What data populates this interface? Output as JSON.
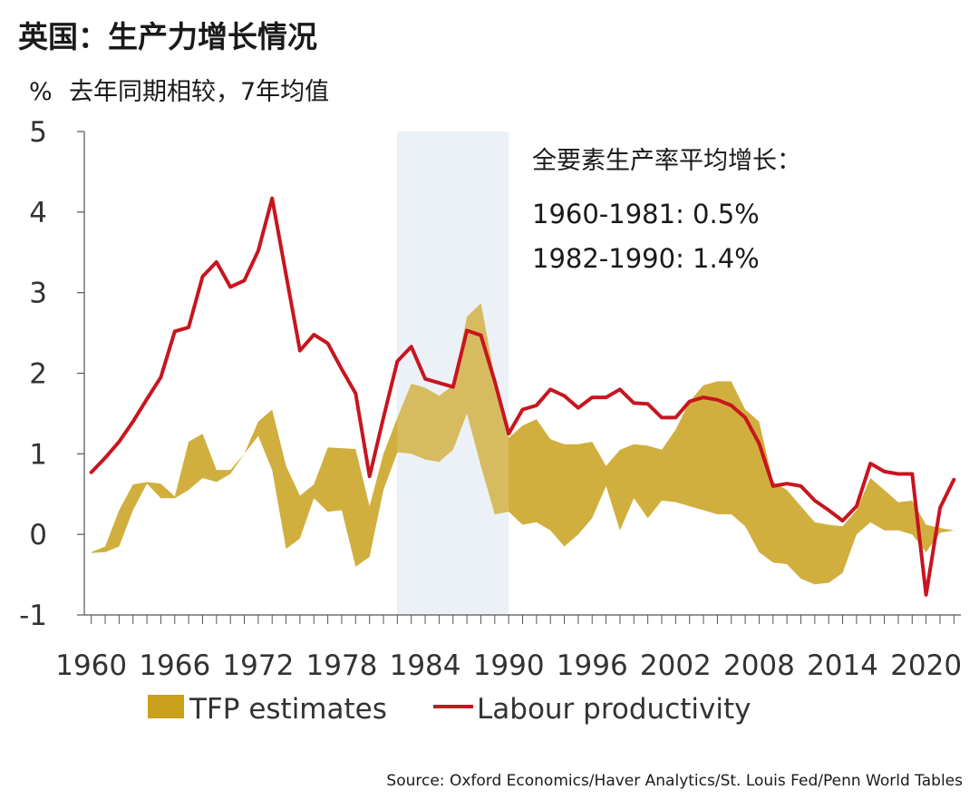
{
  "chart_data": {
    "type": "area",
    "title": "英国：生产力增长情况",
    "ylabel": "%",
    "subtitle": "去年同期相较，7年均值",
    "ylim": [
      -1,
      5
    ],
    "yticks": [
      "-1",
      "0",
      "1",
      "2",
      "3",
      "4",
      "5"
    ],
    "xlim": [
      1959.5,
      2022.5
    ],
    "xtick_labels": [
      "1960",
      "1966",
      "1972",
      "1978",
      "1984",
      "1990",
      "1996",
      "2002",
      "2008",
      "2014",
      "2020"
    ],
    "shaded_period": [
      1982,
      1990
    ],
    "annotation": {
      "title": "全要素生产率平均增长：",
      "lines": [
        "1960-1981: 0.5%",
        "1982-1990: 1.4%"
      ]
    },
    "legend": [
      {
        "name": "TFP estimates",
        "type": "band",
        "color": "#c9a11c"
      },
      {
        "name": "Labour productivity",
        "type": "line",
        "color": "#c8151f"
      }
    ],
    "source": "Source: Oxford Economics/Haver Analytics/St. Louis Fed/Penn World Tables",
    "grid": false,
    "tfp_band": {
      "x": [
        1960,
        1961,
        1962,
        1963,
        1964,
        1965,
        1966,
        1967,
        1968,
        1969,
        1970,
        1971,
        1972,
        1973,
        1974,
        1975,
        1976,
        1977,
        1978,
        1979,
        1980,
        1981,
        1982,
        1983,
        1984,
        1985,
        1986,
        1987,
        1988,
        1989,
        1990,
        1991,
        1992,
        1993,
        1994,
        1995,
        1996,
        1997,
        1998,
        1999,
        2000,
        2001,
        2002,
        2003,
        2004,
        2005,
        2006,
        2007,
        2008,
        2009,
        2010,
        2011,
        2012,
        2013,
        2014,
        2015,
        2016,
        2017,
        2018,
        2019,
        2020,
        2021,
        2022
      ],
      "upper": [
        -0.22,
        -0.15,
        0.3,
        0.62,
        0.65,
        0.63,
        0.47,
        1.15,
        1.25,
        0.8,
        0.8,
        1.0,
        1.4,
        1.55,
        0.85,
        0.48,
        0.62,
        1.08,
        1.07,
        1.06,
        0.35,
        1.0,
        1.45,
        1.87,
        1.82,
        1.72,
        1.85,
        2.7,
        2.87,
        1.95,
        1.2,
        1.35,
        1.43,
        1.18,
        1.12,
        1.12,
        1.15,
        0.85,
        1.05,
        1.12,
        1.1,
        1.05,
        1.3,
        1.65,
        1.85,
        1.9,
        1.9,
        1.55,
        1.4,
        0.65,
        0.55,
        0.35,
        0.15,
        0.12,
        0.1,
        0.3,
        0.7,
        0.55,
        0.4,
        0.42,
        0.12,
        0.08,
        0.05
      ],
      "lower": [
        -0.23,
        -0.22,
        -0.15,
        0.3,
        0.63,
        0.45,
        0.45,
        0.55,
        0.7,
        0.65,
        0.75,
        1.0,
        1.22,
        0.8,
        -0.18,
        -0.05,
        0.45,
        0.28,
        0.3,
        -0.4,
        -0.28,
        0.55,
        1.02,
        1.0,
        0.93,
        0.9,
        1.05,
        1.5,
        0.85,
        0.25,
        0.28,
        0.12,
        0.15,
        0.05,
        -0.15,
        0.0,
        0.2,
        0.6,
        0.05,
        0.45,
        0.2,
        0.42,
        0.4,
        0.35,
        0.3,
        0.25,
        0.25,
        0.1,
        -0.22,
        -0.35,
        -0.37,
        -0.55,
        -0.62,
        -0.6,
        -0.48,
        0.0,
        0.15,
        0.05,
        0.05,
        0.0,
        -0.22,
        0.02,
        0.05
      ]
    },
    "labour_productivity": {
      "x": [
        1960,
        1961,
        1962,
        1963,
        1964,
        1965,
        1966,
        1967,
        1968,
        1969,
        1970,
        1971,
        1972,
        1973,
        1974,
        1975,
        1976,
        1977,
        1978,
        1979,
        1980,
        1981,
        1982,
        1983,
        1984,
        1985,
        1986,
        1987,
        1988,
        1989,
        1990,
        1991,
        1992,
        1993,
        1994,
        1995,
        1996,
        1997,
        1998,
        1999,
        2000,
        2001,
        2002,
        2003,
        2004,
        2005,
        2006,
        2007,
        2008,
        2009,
        2010,
        2011,
        2012,
        2013,
        2014,
        2015,
        2016,
        2017,
        2018,
        2019,
        2020,
        2021,
        2022
      ],
      "values": [
        0.77,
        0.95,
        1.15,
        1.4,
        1.68,
        1.95,
        2.52,
        2.57,
        3.2,
        3.38,
        3.07,
        3.15,
        3.52,
        4.17,
        3.22,
        2.28,
        2.48,
        2.37,
        2.05,
        1.75,
        0.72,
        1.45,
        2.15,
        2.33,
        1.93,
        1.88,
        1.83,
        2.53,
        2.47,
        1.9,
        1.25,
        1.55,
        1.6,
        1.8,
        1.72,
        1.57,
        1.7,
        1.7,
        1.8,
        1.63,
        1.62,
        1.45,
        1.45,
        1.65,
        1.7,
        1.67,
        1.6,
        1.45,
        1.13,
        0.6,
        0.63,
        0.6,
        0.42,
        0.3,
        0.17,
        0.35,
        0.88,
        0.78,
        0.75,
        0.75,
        -0.75,
        0.33,
        0.68
      ]
    }
  }
}
